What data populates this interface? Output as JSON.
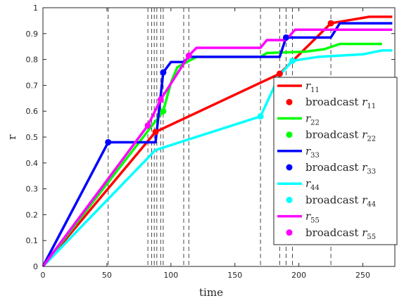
{
  "chart_data": {
    "type": "line",
    "xlabel": "time",
    "ylabel": "r",
    "xlim": [
      0,
      275
    ],
    "ylim": [
      0,
      1
    ],
    "x_ticks": [
      0,
      50,
      100,
      150,
      200,
      250
    ],
    "y_ticks": [
      0,
      0.1,
      0.2,
      0.3,
      0.4,
      0.5,
      0.6,
      0.7,
      0.8,
      0.9,
      1
    ],
    "grid": false,
    "legend_position": "right",
    "broadcast_times": [
      51,
      82,
      85,
      87,
      89,
      92,
      94,
      110,
      114,
      170,
      185,
      190,
      195,
      225
    ],
    "series": [
      {
        "name": "r11",
        "broadcast_name": "broadcast r11",
        "color": "#ff0000",
        "points": [
          [
            0,
            0
          ],
          [
            88,
            0.52
          ],
          [
            185,
            0.745
          ],
          [
            225,
            0.94
          ],
          [
            255,
            0.965
          ],
          [
            273,
            0.965
          ]
        ],
        "markers": [
          [
            88,
            0.52
          ],
          [
            185,
            0.745
          ],
          [
            225,
            0.94
          ]
        ]
      },
      {
        "name": "r22",
        "broadcast_name": "broadcast r22",
        "color": "#00ff00",
        "points": [
          [
            0,
            0
          ],
          [
            94,
            0.6
          ],
          [
            100,
            0.71
          ],
          [
            105,
            0.77
          ],
          [
            120,
            0.81
          ],
          [
            170,
            0.81
          ],
          [
            175,
            0.825
          ],
          [
            205,
            0.83
          ],
          [
            220,
            0.84
          ],
          [
            232,
            0.86
          ],
          [
            265,
            0.86
          ]
        ],
        "markers": [
          [
            94,
            0.6
          ]
        ]
      },
      {
        "name": "r33",
        "broadcast_name": "broadcast r33",
        "color": "#0000ff",
        "points": [
          [
            0,
            0
          ],
          [
            51,
            0.48
          ],
          [
            88,
            0.48
          ],
          [
            94,
            0.75
          ],
          [
            100,
            0.79
          ],
          [
            110,
            0.79
          ],
          [
            114,
            0.81
          ],
          [
            185,
            0.81
          ],
          [
            190,
            0.885
          ],
          [
            225,
            0.885
          ],
          [
            232,
            0.94
          ],
          [
            273,
            0.94
          ]
        ],
        "markers": [
          [
            51,
            0.48
          ],
          [
            94,
            0.75
          ],
          [
            190,
            0.885
          ]
        ]
      },
      {
        "name": "r44",
        "broadcast_name": "broadcast r44",
        "color": "#00ffff",
        "points": [
          [
            0,
            0
          ],
          [
            88,
            0.45
          ],
          [
            170,
            0.58
          ],
          [
            185,
            0.74
          ],
          [
            195,
            0.795
          ],
          [
            215,
            0.81
          ],
          [
            250,
            0.82
          ],
          [
            265,
            0.835
          ],
          [
            273,
            0.835
          ]
        ],
        "markers": [
          [
            170,
            0.58
          ],
          [
            195,
            0.795
          ]
        ]
      },
      {
        "name": "r55",
        "broadcast_name": "broadcast r55",
        "color": "#ff00ff",
        "points": [
          [
            0,
            0
          ],
          [
            82,
            0.545
          ],
          [
            92,
            0.645
          ],
          [
            114,
            0.815
          ],
          [
            120,
            0.845
          ],
          [
            170,
            0.845
          ],
          [
            175,
            0.875
          ],
          [
            190,
            0.875
          ],
          [
            197,
            0.915
          ],
          [
            273,
            0.915
          ]
        ],
        "markers": [
          [
            82,
            0.545
          ],
          [
            92,
            0.645
          ],
          [
            114,
            0.815
          ]
        ]
      }
    ]
  }
}
